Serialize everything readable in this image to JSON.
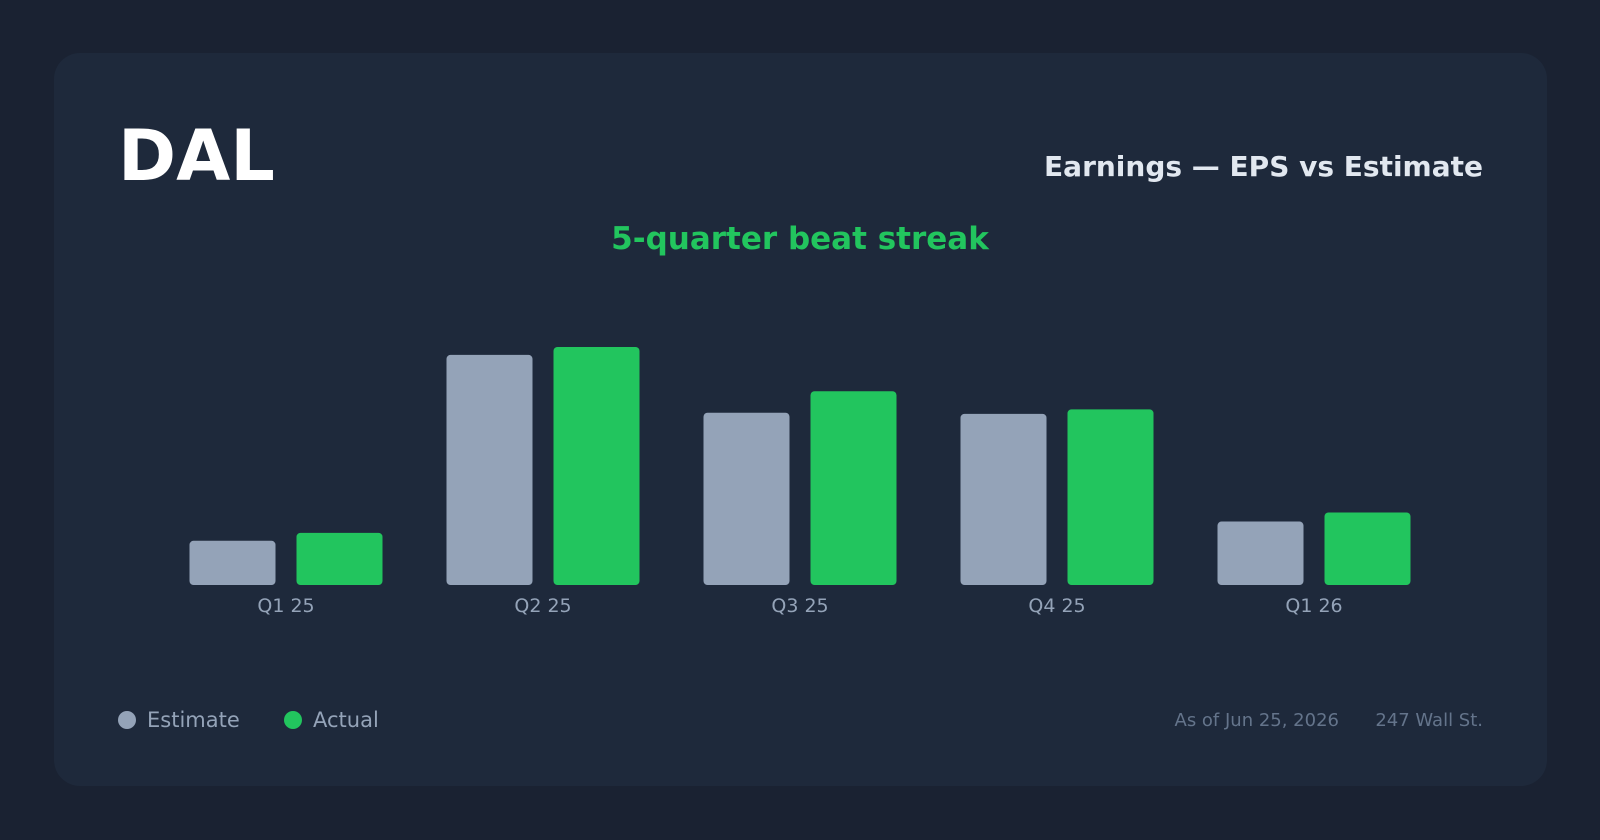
{
  "chart_data": {
    "type": "bar",
    "ticker": "DAL",
    "title": "Earnings — EPS vs Estimate",
    "annotation": "5-quarter beat streak",
    "categories": [
      "Q1 25",
      "Q2 25",
      "Q3 25",
      "Q4 25",
      "Q1 26"
    ],
    "series": [
      {
        "name": "Estimate",
        "color": "#94a3b8",
        "values": [
          0.39,
          2.03,
          1.52,
          1.51,
          0.56
        ]
      },
      {
        "name": "Actual",
        "color": "#22c55e",
        "values": [
          0.46,
          2.1,
          1.71,
          1.55,
          0.64
        ]
      }
    ],
    "ylim": [
      0,
      2.1
    ],
    "date": "As of Jun 25, 2026",
    "source": "247 Wall St."
  }
}
